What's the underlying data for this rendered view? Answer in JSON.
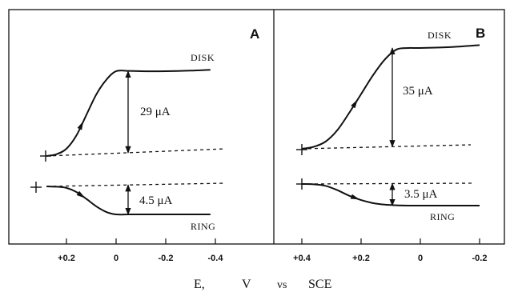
{
  "chart_data": [
    {
      "type": "line",
      "panel": "A",
      "x_ticks": [
        "+0.2",
        "0",
        "-0.2",
        "-0.4"
      ],
      "tick_values": [
        0.2,
        0,
        -0.2,
        -0.4
      ],
      "xlim": [
        0.3,
        -0.45
      ],
      "series": [
        {
          "name": "DISK",
          "x": [
            0.28,
            0.24,
            0.2,
            0.16,
            0.12,
            0.08,
            0.04,
            0.0,
            -0.05,
            -0.1,
            -0.2,
            -0.3,
            -0.38
          ],
          "y": [
            0.0,
            0.6,
            2.5,
            7.0,
            14.0,
            21.0,
            26.0,
            29.0,
            29.1,
            29.0,
            29.0,
            29.2,
            29.5
          ]
        },
        {
          "name": "RING",
          "x": [
            0.28,
            0.24,
            0.2,
            0.16,
            0.12,
            0.08,
            0.04,
            0.0,
            -0.05,
            -0.1,
            -0.2,
            -0.3,
            -0.38
          ],
          "y": [
            0.0,
            -0.05,
            -0.25,
            -0.9,
            -2.0,
            -3.2,
            -4.1,
            -4.5,
            -4.5,
            -4.5,
            -4.5,
            -4.5,
            -4.5
          ]
        }
      ],
      "measurements": [
        {
          "label": "29 μA",
          "x": 0.0
        },
        {
          "label": "4.5 μA",
          "x": 0.0
        }
      ],
      "curve_labels": {
        "disk": "DISK",
        "ring": "RING"
      }
    },
    {
      "type": "line",
      "panel": "B",
      "x_ticks": [
        "+0.4",
        "+0.2",
        "0",
        "-0.2"
      ],
      "tick_values": [
        0.4,
        0.2,
        0,
        -0.2
      ],
      "xlim": [
        0.5,
        -0.25
      ],
      "series": [
        {
          "name": "DISK",
          "x": [
            0.4,
            0.36,
            0.32,
            0.28,
            0.24,
            0.2,
            0.16,
            0.12,
            0.08,
            0.04,
            0.0,
            -0.1,
            -0.2
          ],
          "y": [
            0.0,
            0.7,
            2.5,
            6.5,
            12.5,
            19.0,
            25.5,
            31.0,
            34.5,
            35.0,
            35.0,
            35.3,
            36.0
          ]
        },
        {
          "name": "RING",
          "x": [
            0.4,
            0.36,
            0.32,
            0.28,
            0.24,
            0.2,
            0.16,
            0.12,
            0.08,
            0.04,
            0.0,
            -0.1,
            -0.2
          ],
          "y": [
            0.0,
            -0.05,
            -0.3,
            -1.0,
            -1.9,
            -2.6,
            -3.1,
            -3.35,
            -3.45,
            -3.5,
            -3.5,
            -3.5,
            -3.5
          ]
        }
      ],
      "measurements": [
        {
          "label": "35 μA",
          "x": 0.08
        },
        {
          "label": "3.5 μA",
          "x": 0.08
        }
      ],
      "curve_labels": {
        "disk": "DISK",
        "ring": "RING"
      }
    }
  ],
  "x_axis_label": [
    "E,",
    "V",
    "vs",
    "SCE"
  ]
}
